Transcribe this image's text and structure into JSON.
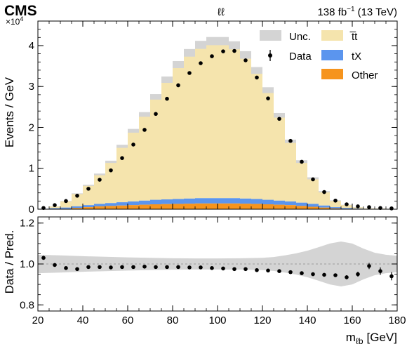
{
  "chart_data": [
    {
      "type": "histogram",
      "panel": "main",
      "experiment": "CMS",
      "channel": "ℓℓ",
      "lumi": "138 fb",
      "lumi_exp": "−1",
      "energy": "(13 TeV)",
      "ylabel": "Events / GeV",
      "yscale_label": "×10",
      "yscale_exp": "4",
      "xlim": [
        20,
        180
      ],
      "ylim": [
        0,
        4.6
      ],
      "y_unit_multiplier": 10000,
      "yticks": [
        0,
        1,
        2,
        3,
        4
      ],
      "bin_edges": [
        20,
        25,
        30,
        35,
        40,
        45,
        50,
        55,
        60,
        65,
        70,
        75,
        80,
        85,
        90,
        95,
        100,
        105,
        110,
        115,
        120,
        125,
        130,
        135,
        140,
        145,
        150,
        155,
        160,
        165,
        170,
        175,
        180
      ],
      "series": [
        {
          "name": "t̅t",
          "key": "ttbar",
          "values": [
            0.0,
            0.04,
            0.15,
            0.3,
            0.47,
            0.7,
            0.98,
            1.33,
            1.68,
            2.05,
            2.45,
            2.85,
            3.2,
            3.47,
            3.65,
            3.74,
            3.74,
            3.64,
            3.42,
            3.06,
            2.61,
            2.03,
            1.43,
            0.97,
            0.6,
            0.32,
            0.15,
            0.07,
            0.03,
            0.01,
            0.01,
            0.0
          ]
        },
        {
          "name": "tX",
          "key": "tx",
          "values": [
            0.01,
            0.02,
            0.03,
            0.04,
            0.05,
            0.06,
            0.07,
            0.08,
            0.09,
            0.1,
            0.11,
            0.115,
            0.12,
            0.125,
            0.13,
            0.13,
            0.13,
            0.13,
            0.125,
            0.12,
            0.11,
            0.1,
            0.09,
            0.08,
            0.07,
            0.05,
            0.03,
            0.02,
            0.01,
            0.005,
            0.003,
            0.001
          ]
        },
        {
          "name": "Other",
          "key": "other",
          "values": [
            0.0,
            0.005,
            0.01,
            0.03,
            0.05,
            0.07,
            0.08,
            0.09,
            0.1,
            0.11,
            0.12,
            0.125,
            0.13,
            0.135,
            0.14,
            0.14,
            0.14,
            0.14,
            0.135,
            0.13,
            0.12,
            0.11,
            0.1,
            0.08,
            0.06,
            0.04,
            0.02,
            0.01,
            0.005,
            0.002,
            0.001,
            0.0
          ]
        }
      ],
      "uncertainty": {
        "name": "Unc.",
        "fraction": [
          0.06,
          0.06,
          0.06,
          0.05,
          0.05,
          0.05,
          0.05,
          0.05,
          0.05,
          0.05,
          0.05,
          0.05,
          0.05,
          0.05,
          0.05,
          0.05,
          0.05,
          0.05,
          0.05,
          0.05,
          0.05,
          0.05,
          0.05,
          0.06,
          0.07,
          0.08,
          0.08,
          0.08,
          0.08,
          0.08,
          0.08,
          0.08
        ]
      },
      "data": {
        "name": "Data",
        "x": [
          22.5,
          27.5,
          32.5,
          37.5,
          42.5,
          47.5,
          52.5,
          57.5,
          62.5,
          67.5,
          72.5,
          77.5,
          82.5,
          87.5,
          92.5,
          97.5,
          102.5,
          107.5,
          112.5,
          117.5,
          122.5,
          127.5,
          132.5,
          137.5,
          142.5,
          147.5,
          152.5,
          157.5,
          162.5,
          167.5,
          172.5,
          177.5
        ],
        "y": [
          0.03,
          0.1,
          0.2,
          0.33,
          0.5,
          0.72,
          0.95,
          1.25,
          1.58,
          1.94,
          2.33,
          2.7,
          3.03,
          3.33,
          3.57,
          3.74,
          3.86,
          3.87,
          3.64,
          3.22,
          2.71,
          2.21,
          1.67,
          1.16,
          0.73,
          0.42,
          0.21,
          0.12,
          0.07,
          0.05,
          0.03,
          0.02
        ]
      },
      "colors": {
        "unc": "#d4d4d4",
        "ttbar": "#f5e4ad",
        "tx": "#5b95ee",
        "other": "#f6941d",
        "data": "#000000"
      },
      "legend_position": "top-right"
    },
    {
      "type": "scatter",
      "panel": "ratio",
      "ylabel": "Data / Pred.",
      "xlabel_main": "m",
      "xlabel_sub": "ℓb",
      "xlabel_unit": "[GeV]",
      "xlim": [
        20,
        180
      ],
      "ylim": [
        0.77,
        1.23
      ],
      "yticks": [
        0.8,
        1.0,
        1.2
      ],
      "ytick_labels": [
        "0.8",
        "1.0",
        "1.2"
      ],
      "xticks": [
        20,
        40,
        60,
        80,
        100,
        120,
        140,
        160,
        180
      ],
      "reference_line": 1.0,
      "band": {
        "x": [
          20,
          30,
          40,
          50,
          60,
          70,
          80,
          90,
          100,
          110,
          120,
          125,
          130,
          135,
          140,
          145,
          150,
          155,
          160,
          165,
          170,
          175,
          180
        ],
        "lo": [
          0.955,
          0.958,
          0.962,
          0.965,
          0.968,
          0.97,
          0.972,
          0.973,
          0.973,
          0.972,
          0.97,
          0.966,
          0.958,
          0.948,
          0.935,
          0.918,
          0.9,
          0.89,
          0.9,
          0.925,
          0.945,
          0.955,
          0.96
        ],
        "hi": [
          1.045,
          1.042,
          1.038,
          1.035,
          1.032,
          1.03,
          1.028,
          1.027,
          1.027,
          1.028,
          1.03,
          1.034,
          1.042,
          1.052,
          1.065,
          1.082,
          1.1,
          1.11,
          1.1,
          1.075,
          1.055,
          1.045,
          1.04
        ]
      },
      "data": {
        "x": [
          22.5,
          27.5,
          32.5,
          37.5,
          42.5,
          47.5,
          52.5,
          57.5,
          62.5,
          67.5,
          72.5,
          77.5,
          82.5,
          87.5,
          92.5,
          97.5,
          102.5,
          107.5,
          112.5,
          117.5,
          122.5,
          127.5,
          132.5,
          137.5,
          142.5,
          147.5,
          152.5,
          157.5,
          162.5,
          167.5,
          172.5,
          177.5
        ],
        "y": [
          1.03,
          0.995,
          0.98,
          0.975,
          0.985,
          0.985,
          0.983,
          0.985,
          0.985,
          0.987,
          0.985,
          0.985,
          0.985,
          0.983,
          0.983,
          0.98,
          0.978,
          0.975,
          0.975,
          0.97,
          0.968,
          0.965,
          0.96,
          0.955,
          0.95,
          0.947,
          0.945,
          0.935,
          0.95,
          0.99,
          0.965,
          0.94
        ],
        "err": [
          0.01,
          0.006,
          0.005,
          0.005,
          0.004,
          0.004,
          0.003,
          0.003,
          0.003,
          0.003,
          0.003,
          0.003,
          0.003,
          0.003,
          0.003,
          0.003,
          0.003,
          0.003,
          0.003,
          0.003,
          0.003,
          0.003,
          0.004,
          0.004,
          0.005,
          0.006,
          0.008,
          0.01,
          0.012,
          0.015,
          0.018,
          0.02
        ]
      }
    }
  ]
}
